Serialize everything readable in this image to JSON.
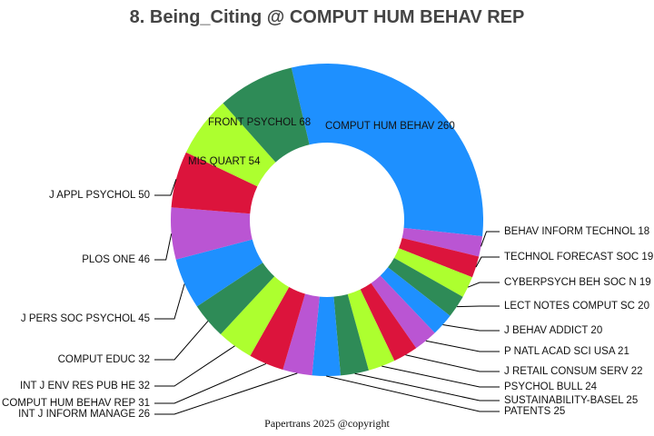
{
  "chart_data": {
    "type": "pie",
    "style": "donut",
    "title": "8. Being_Citing @ COMPUT HUM BEHAV REP",
    "footer": "Papertrans 2025 @copyright",
    "slices": [
      {
        "label": "COMPUT HUM BEHAV",
        "value": 260,
        "color": "#1E90FF",
        "display": "COMPUT HUM BEHAV 260"
      },
      {
        "label": "BEHAV INFORM TECHNOL",
        "value": 18,
        "color": "#BA55D3",
        "display": "BEHAV INFORM TECHNOL 18"
      },
      {
        "label": "TECHNOL FORECAST SOC",
        "value": 19,
        "color": "#DC143C",
        "display": "TECHNOL FORECAST SOC 19"
      },
      {
        "label": "CYBERPSYCH BEH SOC N",
        "value": 19,
        "color": "#ADFF2F",
        "display": "CYBERPSYCH BEH SOC N 19"
      },
      {
        "label": "LECT NOTES COMPUT SC",
        "value": 20,
        "color": "#2E8B57",
        "display": "LECT NOTES COMPUT SC 20"
      },
      {
        "label": "J BEHAV ADDICT",
        "value": 20,
        "color": "#1E90FF",
        "display": "J BEHAV ADDICT 20"
      },
      {
        "label": "P NATL ACAD SCI USA",
        "value": 21,
        "color": "#BA55D3",
        "display": "P NATL ACAD SCI USA 21"
      },
      {
        "label": "J RETAIL CONSUM SERV",
        "value": 22,
        "color": "#DC143C",
        "display": "J RETAIL CONSUM SERV 22"
      },
      {
        "label": "PSYCHOL BULL",
        "value": 24,
        "color": "#ADFF2F",
        "display": "PSYCHOL BULL 24"
      },
      {
        "label": "SUSTAINABILITY-BASEL",
        "value": 25,
        "color": "#2E8B57",
        "display": "SUSTAINABILITY-BASEL 25"
      },
      {
        "label": "PATENTS",
        "value": 25,
        "color": "#1E90FF",
        "display": "PATENTS 25"
      },
      {
        "label": "INT J INFORM MANAGE",
        "value": 26,
        "color": "#BA55D3",
        "display": "INT J INFORM MANAGE 26"
      },
      {
        "label": "COMPUT HUM BEHAV REP",
        "value": 31,
        "color": "#DC143C",
        "display": "COMPUT HUM BEHAV REP 31"
      },
      {
        "label": "INT J ENV RES PUB HE",
        "value": 32,
        "color": "#ADFF2F",
        "display": "INT J ENV RES PUB HE 32"
      },
      {
        "label": "COMPUT EDUC",
        "value": 32,
        "color": "#2E8B57",
        "display": "COMPUT EDUC 32"
      },
      {
        "label": "J PERS SOC PSYCHOL",
        "value": 45,
        "color": "#1E90FF",
        "display": "J PERS SOC PSYCHOL 45"
      },
      {
        "label": "PLOS ONE",
        "value": 46,
        "color": "#BA55D3",
        "display": "PLOS ONE 46"
      },
      {
        "label": "J APPL PSYCHOL",
        "value": 50,
        "color": "#DC143C",
        "display": "J APPL PSYCHOL 50"
      },
      {
        "label": "MIS QUART",
        "value": 54,
        "color": "#ADFF2F",
        "display": "MIS QUART 54"
      },
      {
        "label": "FRONT PSYCHOL",
        "value": 68,
        "color": "#2E8B57",
        "display": "FRONT PSYCHOL 68"
      }
    ]
  }
}
